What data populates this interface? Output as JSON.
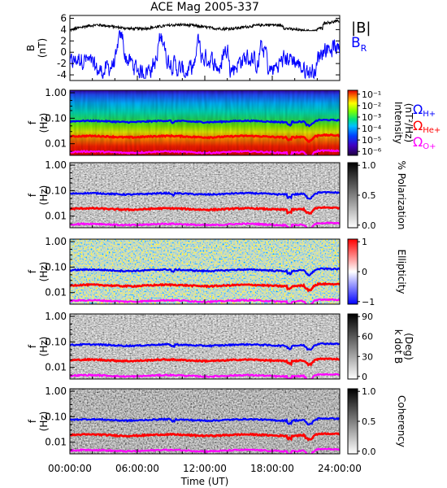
{
  "title": "ACE Mag 2005-337",
  "chart_data": [
    {
      "type": "line",
      "panel": "B field",
      "ylabel": "B",
      "yunit": "(nT)",
      "ylim": [
        -5,
        6.5
      ],
      "yticks": [
        6,
        4,
        2,
        0,
        -2,
        -4
      ],
      "xlim_hours": [
        0,
        24
      ],
      "series": [
        {
          "name": "|B|",
          "color": "#000000",
          "approx_level_nT": 4.5,
          "range_nT": [
            3.8,
            5.9
          ]
        },
        {
          "name": "B_R",
          "color": "#0000ff",
          "approx_level_nT": -1.5,
          "range_nT": [
            -4.6,
            3.8
          ]
        }
      ]
    },
    {
      "type": "heatmap",
      "panel": "Spectral intensity",
      "ylabel": "f",
      "yunit": "(Hz)",
      "yscale": "log",
      "yticks": [
        "1.00",
        "0.10",
        "0.01"
      ],
      "colorbar": {
        "label": "Intensity",
        "unit": "(nT²/Hz)",
        "ticks": [
          "10⁻¹",
          "10⁻²",
          "10⁻³",
          "10⁻⁴",
          "10⁻⁵",
          "10⁻⁶"
        ],
        "colormap": "rainbow"
      },
      "gyro_lines": [
        "H+",
        "He+",
        "O+"
      ]
    },
    {
      "type": "heatmap",
      "panel": "Polarization",
      "ylabel": "f",
      "yunit": "(Hz)",
      "yscale": "log",
      "yticks": [
        "1.00",
        "0.10",
        "0.01"
      ],
      "colorbar": {
        "label": "% Polarization",
        "ticks": [
          "1.0",
          "0.5",
          "0.0"
        ],
        "colormap": "grayscale"
      },
      "gyro_lines": [
        "H+",
        "He+",
        "O+"
      ]
    },
    {
      "type": "heatmap",
      "panel": "Ellipticity",
      "ylabel": "f",
      "yunit": "(Hz)",
      "yscale": "log",
      "yticks": [
        "1.00",
        "0.10",
        "0.01"
      ],
      "colorbar": {
        "label": "Ellipticity",
        "ticks": [
          "1",
          "0",
          "−1"
        ],
        "colormap": "blue-white-red"
      },
      "gyro_lines": [
        "H+",
        "He+",
        "O+"
      ]
    },
    {
      "type": "heatmap",
      "panel": "Wave normal angle",
      "ylabel": "f",
      "yunit": "(Hz)",
      "yscale": "log",
      "yticks": [
        "1.00",
        "0.10",
        "0.01"
      ],
      "colorbar": {
        "label": "k dot B",
        "unit": "(Deg)",
        "ticks": [
          "90",
          "60",
          "30",
          "0"
        ],
        "colormap": "grayscale"
      },
      "gyro_lines": [
        "H+",
        "He+",
        "O+"
      ]
    },
    {
      "type": "heatmap",
      "panel": "Coherency",
      "ylabel": "f",
      "yunit": "(Hz)",
      "yscale": "log",
      "yticks": [
        "1.00",
        "0.10",
        "0.01"
      ],
      "colorbar": {
        "label": "Coherency",
        "ticks": [
          "1.0",
          "0.5",
          "0.0"
        ],
        "colormap": "grayscale"
      },
      "gyro_lines": [
        "H+",
        "He+",
        "O+"
      ]
    }
  ],
  "gyrofrequency_lines": [
    {
      "ion": "H+",
      "symbol": "Ω",
      "sub": "H+",
      "color": "#0000ff",
      "approx_f_hz": 0.075
    },
    {
      "ion": "He+",
      "symbol": "Ω",
      "sub": "He+",
      "color": "#ff0000",
      "approx_f_hz": 0.019
    },
    {
      "ion": "O+",
      "symbol": "Ω",
      "sub": "O+",
      "color": "#ff00ff",
      "approx_f_hz": 0.0047
    }
  ],
  "legend_top": {
    "bmag": "|B|",
    "br_main": "B",
    "br_sub": "R"
  },
  "xaxis": {
    "label": "Time (UT)",
    "ticks": [
      "00:00:00",
      "06:00:00",
      "12:00:00",
      "18:00:00",
      "24:00:00"
    ]
  },
  "colors": {
    "bmag": "#000000",
    "br": "#0000ff",
    "h": "#0000ff",
    "he": "#ff0000",
    "o": "#ff00ff"
  }
}
